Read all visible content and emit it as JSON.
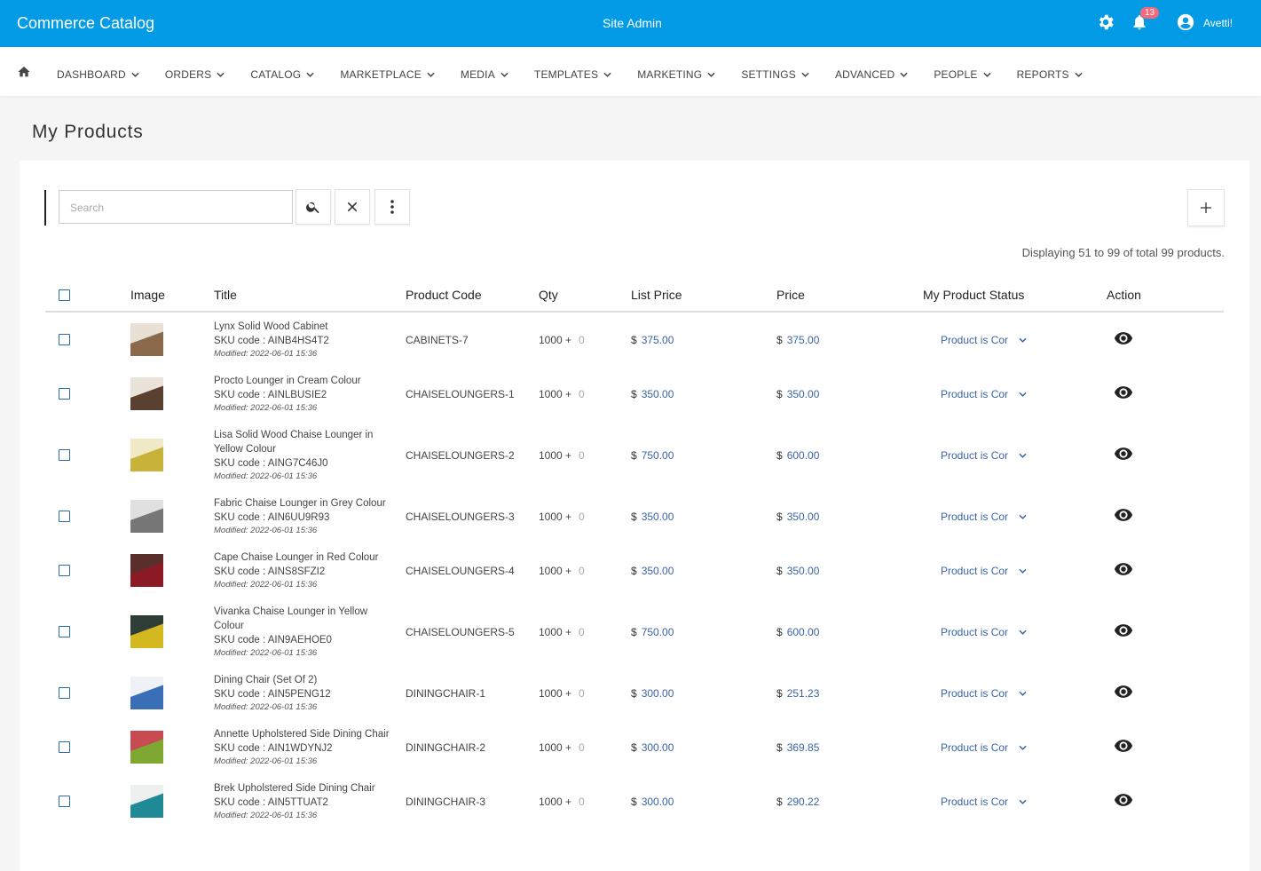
{
  "header": {
    "title": "Commerce Catalog",
    "center": "Site Admin",
    "notifications": "13",
    "user": "Avetti!"
  },
  "nav": [
    "DASHBOARD",
    "ORDERS",
    "CATALOG",
    "MARKETPLACE",
    "MEDIA",
    "TEMPLATES",
    "MARKETING",
    "SETTINGS",
    "ADVANCED",
    "PEOPLE",
    "REPORTS"
  ],
  "page_title": "My Products",
  "search_placeholder": "Search",
  "summary": "Displaying 51 to 99 of total 99 products.",
  "table": {
    "currency": "$",
    "headers": [
      "Image",
      "Title",
      "Product Code",
      "Qty",
      "List Price",
      "Price",
      "My Product Status",
      "Action"
    ],
    "rows": [
      {
        "title": "Lynx Solid Wood Cabinet",
        "sku": "SKU code : AINB4HS4T2",
        "modified": "Modified: 2022-06-01 15:36",
        "code": "CABINETS-7",
        "qty": "1000 +",
        "qty_extra": "0",
        "list_price": "375.00",
        "price": "375.00",
        "status": "Product is Cor"
      },
      {
        "title": "Procto Lounger in Cream Colour",
        "sku": "SKU code : AINLBUSIE2",
        "modified": "Modified: 2022-06-01 15:36",
        "code": "CHAISELOUNGERS-1",
        "qty": "1000 +",
        "qty_extra": "0",
        "list_price": "350.00",
        "price": "350.00",
        "status": "Product is Cor"
      },
      {
        "title": "Lisa Solid Wood Chaise Lounger in Yellow Colour",
        "sku": "SKU code : AING7C46J0",
        "modified": "Modified: 2022-06-01 15:36",
        "code": "CHAISELOUNGERS-2",
        "qty": "1000 +",
        "qty_extra": "0",
        "list_price": "750.00",
        "price": "600.00",
        "status": "Product is Cor"
      },
      {
        "title": "Fabric Chaise Lounger in Grey Colour",
        "sku": "SKU code : AIN6UU9R93",
        "modified": "Modified: 2022-06-01 15:36",
        "code": "CHAISELOUNGERS-3",
        "qty": "1000 +",
        "qty_extra": "0",
        "list_price": "350.00",
        "price": "350.00",
        "status": "Product is Cor"
      },
      {
        "title": "Cape Chaise Lounger in Red Colour",
        "sku": "SKU code : AINS8SFZI2",
        "modified": "Modified: 2022-06-01 15:36",
        "code": "CHAISELOUNGERS-4",
        "qty": "1000 +",
        "qty_extra": "0",
        "list_price": "350.00",
        "price": "350.00",
        "status": "Product is Cor"
      },
      {
        "title": "Vivanka Chaise Lounger in Yellow Colour",
        "sku": "SKU code : AIN9AEHOE0",
        "modified": "Modified: 2022-06-01 15:36",
        "code": "CHAISELOUNGERS-5",
        "qty": "1000 +",
        "qty_extra": "0",
        "list_price": "750.00",
        "price": "600.00",
        "status": "Product is Cor"
      },
      {
        "title": "Dining Chair (Set Of 2)",
        "sku": "SKU code : AIN5PENG12",
        "modified": "Modified: 2022-06-01 15:36",
        "code": "DININGCHAIR-1",
        "qty": "1000 +",
        "qty_extra": "0",
        "list_price": "300.00",
        "price": "251.23",
        "status": "Product is Cor"
      },
      {
        "title": "Annette Upholstered Side Dining Chair",
        "sku": "SKU code : AIN1WDYNJ2",
        "modified": "Modified: 2022-06-01 15:36",
        "code": "DININGCHAIR-2",
        "qty": "1000 +",
        "qty_extra": "0",
        "list_price": "300.00",
        "price": "369.85",
        "status": "Product is Cor"
      },
      {
        "title": "Brek Upholstered Side Dining Chair",
        "sku": "SKU code : AIN5TTUAT2",
        "modified": "Modified: 2022-06-01 15:36",
        "code": "DININGCHAIR-3",
        "qty": "1000 +",
        "qty_extra": "0",
        "list_price": "300.00",
        "price": "290.22",
        "status": "Product is Cor"
      }
    ]
  }
}
